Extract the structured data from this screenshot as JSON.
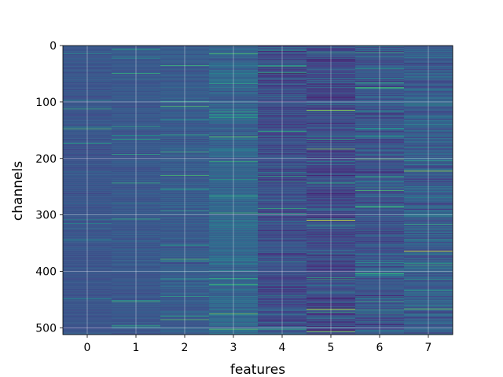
{
  "chart_data": {
    "type": "heatmap",
    "title": "",
    "xlabel": "features",
    "ylabel": "channels",
    "x_ticks": [
      "0",
      "1",
      "2",
      "3",
      "4",
      "5",
      "6",
      "7"
    ],
    "y_ticks": [
      "0",
      "100",
      "200",
      "300",
      "400",
      "500"
    ],
    "xlim": [
      -0.5,
      7.5
    ],
    "ylim": [
      512,
      0
    ],
    "n_features": 8,
    "n_channels": 512,
    "grid": true,
    "colormap": "viridis",
    "column_mean_intensity": [
      0.33,
      0.34,
      0.36,
      0.41,
      0.3,
      0.28,
      0.33,
      0.37
    ],
    "highlights": [
      {
        "feature": 4,
        "channel": 49,
        "level": 0.05
      },
      {
        "feature": 4,
        "channel": 220,
        "level": 0.1
      },
      {
        "feature": 5,
        "channel": 114,
        "level": 0.9
      },
      {
        "feature": 5,
        "channel": 183,
        "level": 0.85
      },
      {
        "feature": 5,
        "channel": 309,
        "level": 0.95
      },
      {
        "feature": 5,
        "channel": 467,
        "level": 0.95
      },
      {
        "feature": 5,
        "channel": 506,
        "level": 0.9
      },
      {
        "feature": 6,
        "channel": 201,
        "level": 0.8
      },
      {
        "feature": 6,
        "channel": 286,
        "level": 0.75
      },
      {
        "feature": 6,
        "channel": 494,
        "level": 0.1
      },
      {
        "feature": 7,
        "channel": 222,
        "level": 0.9
      },
      {
        "feature": 7,
        "channel": 364,
        "level": 0.98
      },
      {
        "feature": 7,
        "channel": 466,
        "level": 0.85
      }
    ]
  }
}
